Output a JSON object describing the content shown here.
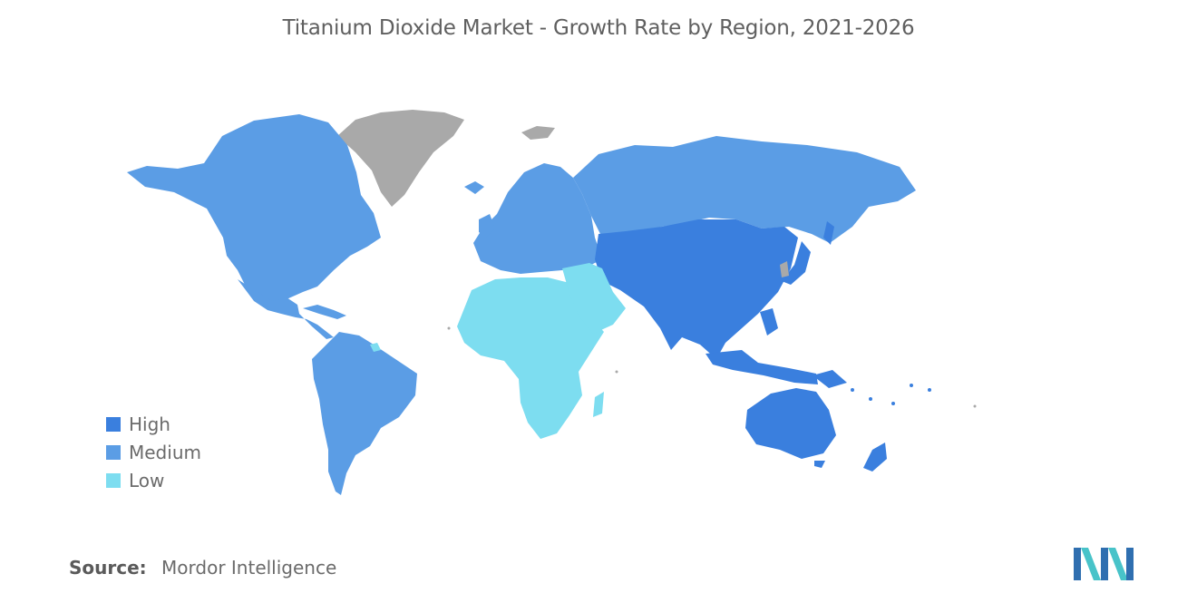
{
  "title": "Titanium Dioxide Market - Growth Rate by Region, 2021-2026",
  "legend": [
    {
      "label": "High",
      "color": "#3a7fde"
    },
    {
      "label": "Medium",
      "color": "#5b9de5"
    },
    {
      "label": "Low",
      "color": "#7dddf0"
    }
  ],
  "no_data_color": "#a9a9a9",
  "source": {
    "label": "Source:",
    "value": "Mordor Intelligence"
  },
  "logo": {
    "name": "mordor-intelligence-logo",
    "colors": [
      "#2f6fb0",
      "#48c3c9"
    ]
  },
  "regions": [
    {
      "name": "North America",
      "level": "Medium"
    },
    {
      "name": "South America",
      "level": "Medium"
    },
    {
      "name": "Europe",
      "level": "Medium"
    },
    {
      "name": "Russia",
      "level": "Medium"
    },
    {
      "name": "Asia-Pacific",
      "level": "High"
    },
    {
      "name": "Australia and New Zealand",
      "level": "High"
    },
    {
      "name": "Middle East and Africa",
      "level": "Low"
    },
    {
      "name": "Greenland",
      "level": "No data"
    }
  ]
}
